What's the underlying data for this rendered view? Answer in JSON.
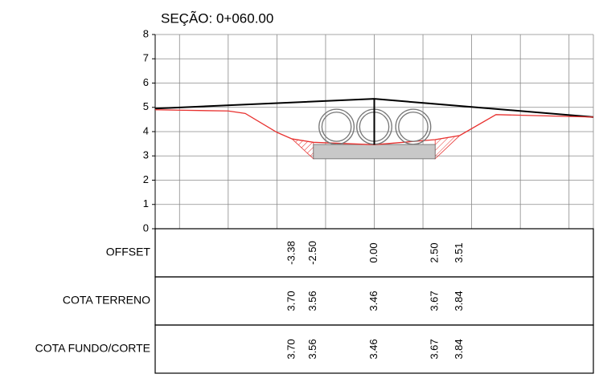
{
  "chart_data": {
    "type": "section",
    "title": "SEÇÃO: 0+060.00",
    "xlim": [
      -9,
      9
    ],
    "xticks": [
      -8,
      -6,
      -4,
      -2,
      0,
      2,
      4,
      6,
      8
    ],
    "ylim": [
      0,
      8
    ],
    "yticks": [
      0,
      1,
      2,
      3,
      4,
      5,
      6,
      7,
      8
    ],
    "grid": true,
    "series": [
      {
        "color": "#000000",
        "x": [
          -9,
          0,
          9
        ],
        "values": [
          4.95,
          5.35,
          4.6
        ]
      },
      {
        "color": "#e8312f",
        "x": [
          -9,
          -6,
          -5.3,
          -4,
          -3.38,
          -2.5,
          0,
          2.5,
          3.51,
          5,
          9
        ],
        "values": [
          4.9,
          4.85,
          4.75,
          3.97,
          3.7,
          3.56,
          3.46,
          3.67,
          3.84,
          4.7,
          4.6
        ]
      }
    ],
    "slab": {
      "x": [
        -2.5,
        2.5
      ],
      "y": [
        2.88,
        3.47
      ],
      "color": "#c8c8c8"
    },
    "pipes": {
      "x": [
        -1.55,
        0,
        1.6
      ],
      "y": 4.2,
      "r": 0.72,
      "r_inner": 0.6
    },
    "axis_line": {
      "x": 0,
      "y": [
        3.46,
        5.35
      ]
    },
    "table": {
      "rows": [
        {
          "label": "OFFSET",
          "values": [
            -3.38,
            -2.5,
            0,
            2.5,
            3.51
          ],
          "value_labels": [
            "-3.38",
            "-2.50",
            "0.00",
            "2.50",
            "3.51"
          ]
        },
        {
          "label": "COTA TERRENO",
          "values": [
            3.7,
            3.56,
            3.46,
            3.67,
            3.84
          ],
          "value_labels": [
            "3.70",
            "3.56",
            "3.46",
            "3.67",
            "3.84"
          ]
        },
        {
          "label": "COTA FUNDO/CORTE",
          "values": [
            3.7,
            3.56,
            3.46,
            3.67,
            3.84
          ],
          "value_labels": [
            "3.70",
            "3.56",
            "3.46",
            "3.67",
            "3.84"
          ]
        }
      ]
    }
  }
}
